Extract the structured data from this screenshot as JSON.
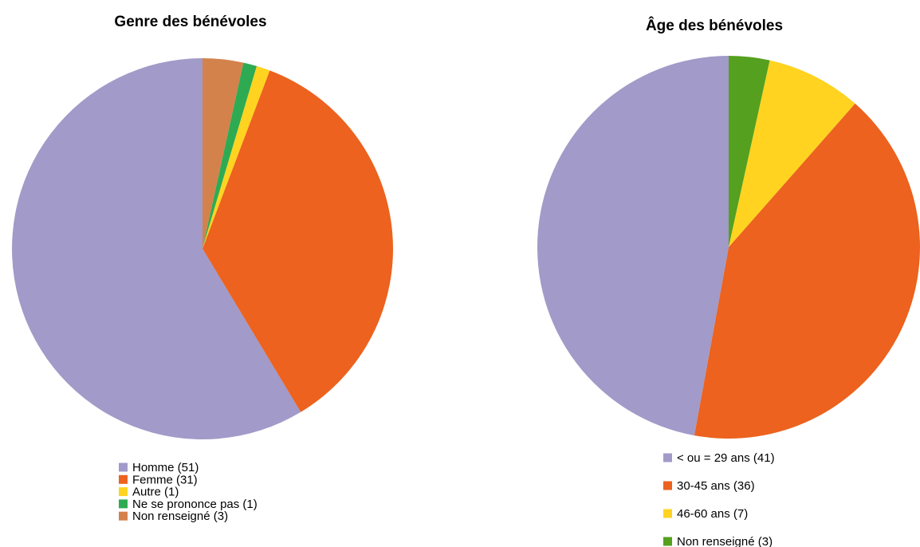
{
  "chart_data": [
    {
      "type": "pie",
      "title": "Genre des bénévoles",
      "slices": [
        {
          "label": "Homme (51)",
          "value": 51,
          "color": "#A29AC8"
        },
        {
          "label": "Femme (31)",
          "value": 31,
          "color": "#EC621E"
        },
        {
          "label": "Autre (1)",
          "value": 1,
          "color": "#FFD320"
        },
        {
          "label": "Ne se prononce pas (1)",
          "value": 1,
          "color": "#2EAB52"
        },
        {
          "label": "Non renseigné (3)",
          "value": 3,
          "color": "#D4824B"
        }
      ],
      "slice_order": "clockwise from top, starting with Non renseigné (3)",
      "legend_position": "bottom"
    },
    {
      "type": "pie",
      "title": "Âge des bénévoles",
      "slices": [
        {
          "label": "< ou = 29 ans (41)",
          "value": 41,
          "color": "#A29AC8"
        },
        {
          "label": "30-45 ans (36)",
          "value": 36,
          "color": "#EC621E"
        },
        {
          "label": "46-60 ans (7)",
          "value": 7,
          "color": "#FFD320"
        },
        {
          "label": "Non renseigné (3)",
          "value": 3,
          "color": "#55A01E"
        }
      ],
      "slice_order": "clockwise from top, starting with Non renseigné (3)",
      "legend_position": "bottom"
    }
  ]
}
